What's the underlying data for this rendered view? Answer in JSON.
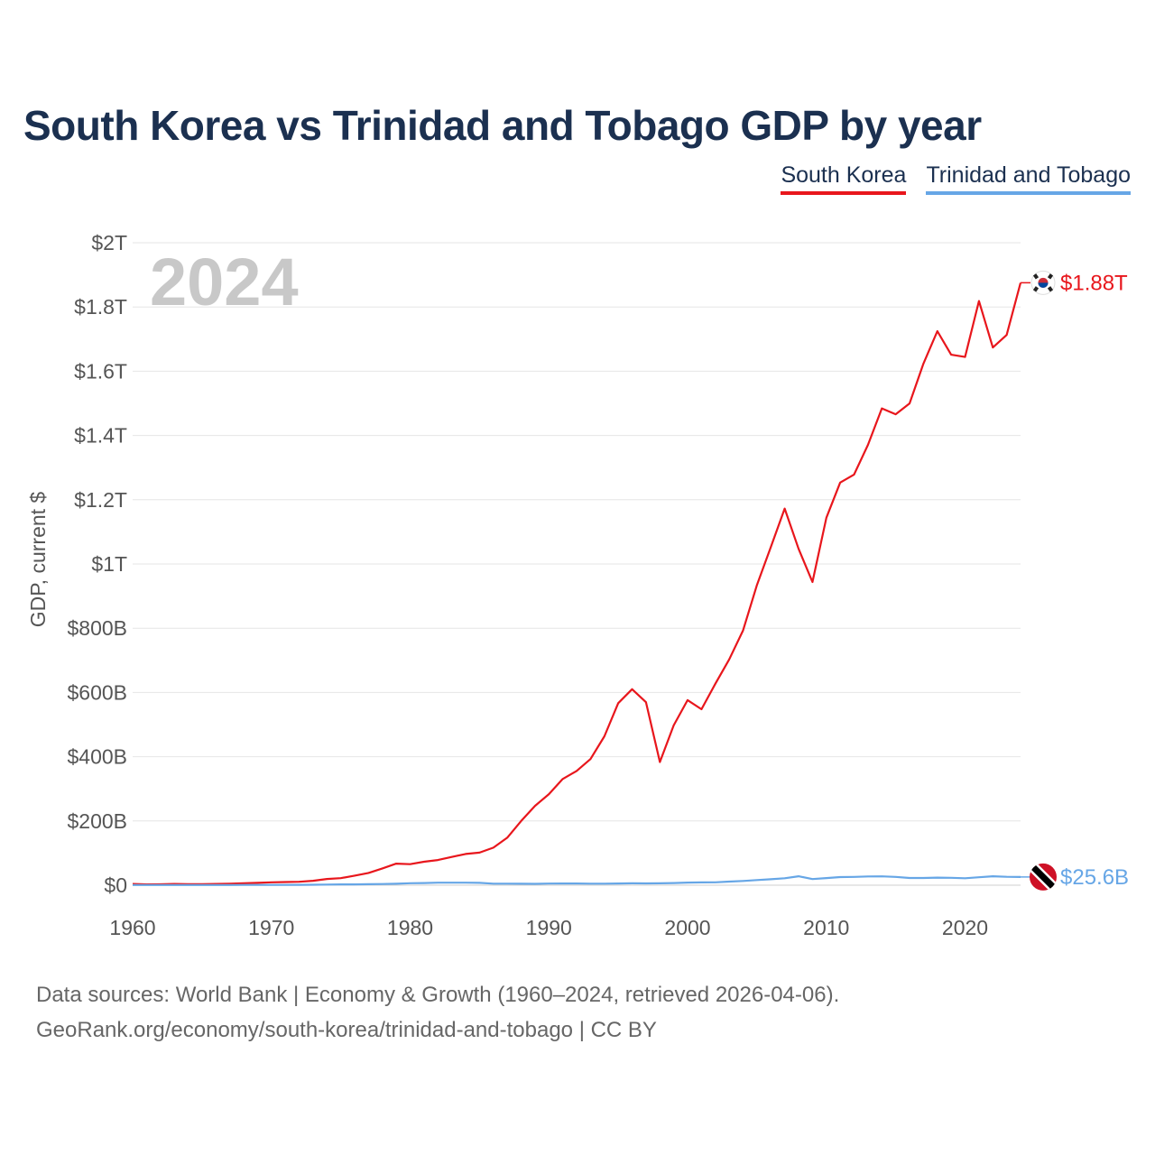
{
  "chart_data": {
    "type": "line",
    "title": "South Korea vs Trinidad and Tobago GDP by year",
    "ylabel": "GDP, current $",
    "xlabel": "",
    "xlim": [
      1960,
      2024
    ],
    "ylim": [
      0,
      2000
    ],
    "value_unit": "billions of current US$",
    "year_label": "2024",
    "x_ticks": [
      1960,
      1970,
      1980,
      1990,
      2000,
      2010,
      2020
    ],
    "y_ticks": [
      {
        "value": 0,
        "label": "$0"
      },
      {
        "value": 200,
        "label": "$200B"
      },
      {
        "value": 400,
        "label": "$400B"
      },
      {
        "value": 600,
        "label": "$600B"
      },
      {
        "value": 800,
        "label": "$800B"
      },
      {
        "value": 1000,
        "label": "$1T"
      },
      {
        "value": 1200,
        "label": "$1.2T"
      },
      {
        "value": 1400,
        "label": "$1.4T"
      },
      {
        "value": 1600,
        "label": "$1.6T"
      },
      {
        "value": 1800,
        "label": "$1.8T"
      },
      {
        "value": 2000,
        "label": "$2T"
      }
    ],
    "years": [
      1960,
      1961,
      1962,
      1963,
      1964,
      1965,
      1966,
      1967,
      1968,
      1969,
      1970,
      1971,
      1972,
      1973,
      1974,
      1975,
      1976,
      1977,
      1978,
      1979,
      1980,
      1981,
      1982,
      1983,
      1984,
      1985,
      1986,
      1987,
      1988,
      1989,
      1990,
      1991,
      1992,
      1993,
      1994,
      1995,
      1996,
      1997,
      1998,
      1999,
      2000,
      2001,
      2002,
      2003,
      2004,
      2005,
      2006,
      2007,
      2008,
      2009,
      2010,
      2011,
      2012,
      2013,
      2014,
      2015,
      2016,
      2017,
      2018,
      2019,
      2020,
      2021,
      2022,
      2023,
      2024
    ],
    "series": [
      {
        "name": "South Korea",
        "color": "#e8161c",
        "end_label": "$1.88T",
        "flag_icon": "south-korea-flag-icon",
        "values": [
          4,
          2.4,
          2.8,
          3.9,
          3.5,
          3.1,
          3.9,
          4.8,
          6,
          7.4,
          9,
          9.9,
          10.7,
          13.8,
          19.3,
          21.8,
          29.8,
          38.3,
          52.2,
          67,
          65.4,
          72.9,
          78.3,
          87.9,
          97.3,
          101.3,
          116.9,
          147.7,
          199.6,
          246.9,
          283.4,
          330.6,
          355.5,
          392.7,
          463.6,
          566.6,
          610.2,
          569.8,
          383.3,
          497.5,
          576.2,
          547.7,
          627.2,
          702.7,
          793.2,
          934.9,
          1053.2,
          1172.6,
          1047.3,
          943.9,
          1143.9,
          1253.3,
          1278.4,
          1370.8,
          1484.3,
          1466,
          1499.7,
          1623.9,
          1724.8,
          1651.4,
          1644.3,
          1818.4,
          1673.9,
          1712.8,
          1875.4
        ]
      },
      {
        "name": "Trinidad and Tobago",
        "color": "#66a6e6",
        "end_label": "$25.6B",
        "flag_icon": "trinidad-and-tobago-flag-icon",
        "values": [
          0.5,
          0.5,
          0.6,
          0.6,
          0.7,
          0.7,
          0.7,
          0.7,
          0.8,
          0.9,
          0.8,
          0.9,
          1.1,
          1.3,
          2,
          2.4,
          2.6,
          3.1,
          3.6,
          4.6,
          6.2,
          6.8,
          8,
          7.8,
          7.8,
          7.4,
          4.8,
          4.7,
          4.4,
          4.3,
          5.1,
          5.3,
          5.4,
          4.7,
          4.9,
          5.3,
          5.8,
          5.7,
          6.0,
          6.8,
          8.2,
          8.8,
          9.0,
          11.3,
          13.3,
          15.9,
          18.4,
          21.6,
          27.9,
          19.2,
          22.2,
          25.4,
          25.9,
          27.3,
          27.6,
          25.9,
          22.6,
          22.4,
          23.7,
          23.1,
          21.5,
          24.6,
          27.9,
          26.2,
          25.6
        ]
      }
    ]
  },
  "legend": {
    "south_korea": "South Korea",
    "trinidad_and_tobago": "Trinidad and Tobago"
  },
  "footer": {
    "line1": "Data sources: World Bank | Economy & Growth (1960–2024, retrieved 2026-04-06).",
    "line2": "GeoRank.org/economy/south-korea/trinidad-and-tobago | CC BY"
  },
  "colors": {
    "title": "#1b3050",
    "south_korea": "#e8161c",
    "trinidad_and_tobago": "#66a6e6",
    "grid": "#e6e6e6",
    "axis_text": "#555555",
    "year_watermark": "#c8c8c8"
  }
}
